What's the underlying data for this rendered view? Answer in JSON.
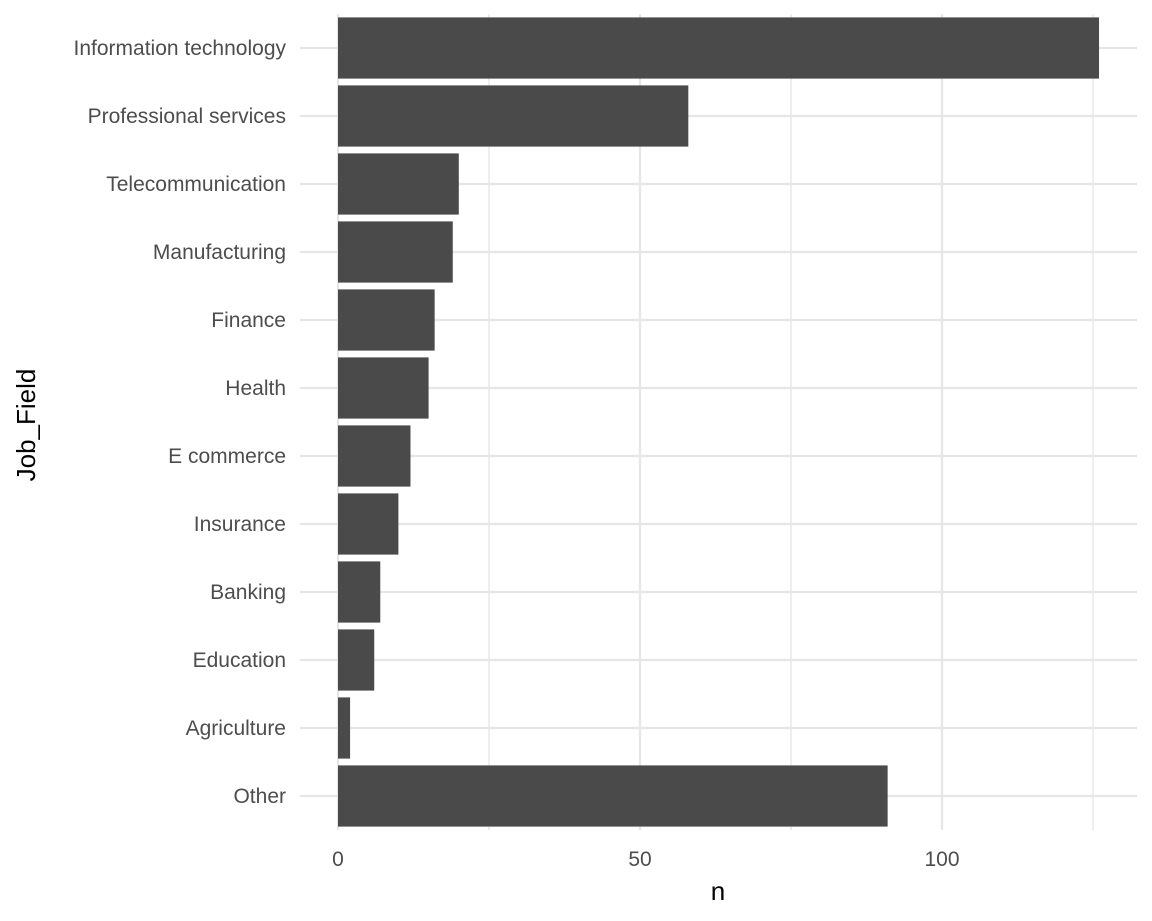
{
  "chart_data": {
    "type": "bar",
    "orientation": "horizontal",
    "categories": [
      "Information technology",
      "Professional services",
      "Telecommunication",
      "Manufacturing",
      "Finance",
      "Health",
      "E commerce",
      "Insurance",
      "Banking",
      "Education",
      "Agriculture",
      "Other"
    ],
    "values": [
      126,
      58,
      20,
      19,
      16,
      15,
      12,
      10,
      7,
      6,
      2,
      91
    ],
    "xlabel": "n",
    "ylabel": "Job_Field",
    "xlim": [
      0,
      131
    ],
    "x_ticks": [
      0,
      50,
      100
    ],
    "x_minor_ticks": [
      25,
      75,
      125
    ],
    "grid": true,
    "bar_color": "#4a4a4a",
    "grid_color": "#e6e6e6"
  }
}
